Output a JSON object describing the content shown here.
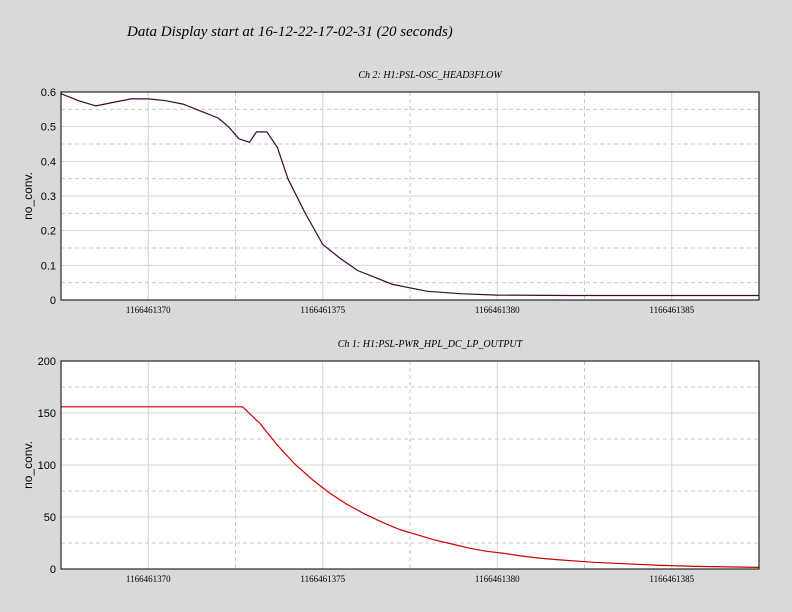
{
  "title": "Data Display start at 16-12-22-17-02-31 (20 seconds)",
  "chart_data": [
    {
      "type": "line",
      "title": "Ch 2: H1:PSL-OSC_HEAD3FLOW",
      "ylabel": "no_conv.",
      "xlabel": "",
      "xlim": [
        1166461367.5,
        1166461387.5
      ],
      "ylim": [
        0,
        0.6
      ],
      "yticks": [
        "0",
        "0.1",
        "0.2",
        "0.3",
        "0.4",
        "0.5",
        "0.6"
      ],
      "xticks": [
        "1166461370",
        "1166461375",
        "1166461380",
        "1166461385"
      ],
      "color": "#3a0a3a",
      "grid": true,
      "series": [
        {
          "x": [
            1166461367.5,
            1166461368.0,
            1166461368.5,
            1166461369.0,
            1166461369.5,
            1166461370.0,
            1166461370.5,
            1166461371.0,
            1166461371.5,
            1166461372.0,
            1166461372.3,
            1166461372.6,
            1166461372.9,
            1166461373.1,
            1166461373.4,
            1166461373.7,
            1166461374.0,
            1166461374.5,
            1166461375.0,
            1166461375.5,
            1166461376.0,
            1166461377.0,
            1166461378.0,
            1166461379.0,
            1166461380.0,
            1166461382.0,
            1166461385.0,
            1166461387.5
          ],
          "y": [
            0.595,
            0.575,
            0.56,
            0.57,
            0.58,
            0.58,
            0.575,
            0.565,
            0.545,
            0.525,
            0.5,
            0.465,
            0.455,
            0.485,
            0.485,
            0.44,
            0.35,
            0.25,
            0.16,
            0.12,
            0.085,
            0.045,
            0.025,
            0.018,
            0.014,
            0.013,
            0.013,
            0.013
          ]
        }
      ]
    },
    {
      "type": "line",
      "title": "Ch 1: H1:PSL-PWR_HPL_DC_LP_OUTPUT",
      "ylabel": "no_conv.",
      "xlabel": "",
      "xlim": [
        1166461367.5,
        1166461387.5
      ],
      "ylim": [
        0,
        200
      ],
      "yticks": [
        "0",
        "50",
        "100",
        "150",
        "200"
      ],
      "xticks": [
        "1166461370",
        "1166461375",
        "1166461380",
        "1166461385"
      ],
      "color": "#cc0000",
      "grid": true,
      "series": [
        {
          "x": [
            1166461367.5,
            1166461368.5,
            1166461369.5,
            1166461370.5,
            1166461371.5,
            1166461372.5,
            1166461372.7,
            1166461373.2,
            1166461373.7,
            1166461374.2,
            1166461374.7,
            1166461375.2,
            1166461375.7,
            1166461376.2,
            1166461376.7,
            1166461377.2,
            1166461377.7,
            1166461378.2,
            1166461378.7,
            1166461379.2,
            1166461379.7,
            1166461380.2,
            1166461380.7,
            1166461381.2,
            1166461381.7,
            1166461382.7,
            1166461383.7,
            1166461384.7,
            1166461385.7,
            1166461387.5
          ],
          "y": [
            156,
            156,
            156,
            156,
            156,
            156,
            156,
            140,
            119,
            101,
            86,
            73,
            62,
            53,
            45,
            38,
            33,
            28,
            24,
            20,
            17,
            15,
            12.5,
            10.5,
            9,
            6.5,
            5,
            3.5,
            2.5,
            1.5
          ]
        }
      ]
    }
  ]
}
